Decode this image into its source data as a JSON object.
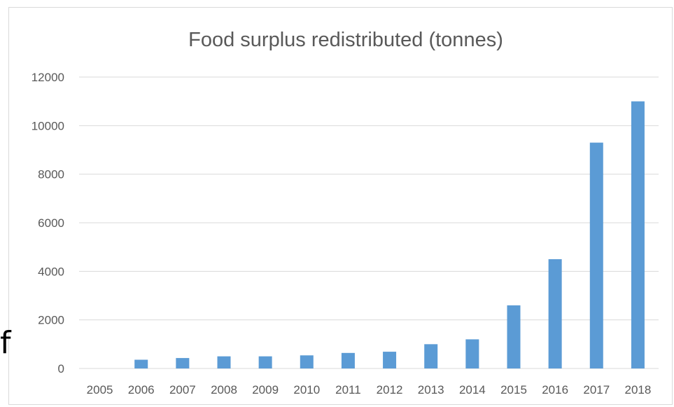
{
  "stray_text": "f",
  "chart_data": {
    "type": "bar",
    "title": "Food surplus redistributed (tonnes)",
    "xlabel": "",
    "ylabel": "",
    "categories": [
      "2005",
      "2006",
      "2007",
      "2008",
      "2009",
      "2010",
      "2011",
      "2012",
      "2013",
      "2014",
      "2015",
      "2016",
      "2017",
      "2018"
    ],
    "values": [
      0,
      360,
      430,
      500,
      500,
      540,
      640,
      690,
      1000,
      1200,
      2600,
      4500,
      9300,
      11000
    ],
    "ylim": [
      0,
      12000
    ],
    "yticks": [
      0,
      2000,
      4000,
      6000,
      8000,
      10000,
      12000
    ],
    "grid": true,
    "legend": "none",
    "bar_color": "#5b9bd5",
    "grid_color": "#d9d9d9"
  }
}
